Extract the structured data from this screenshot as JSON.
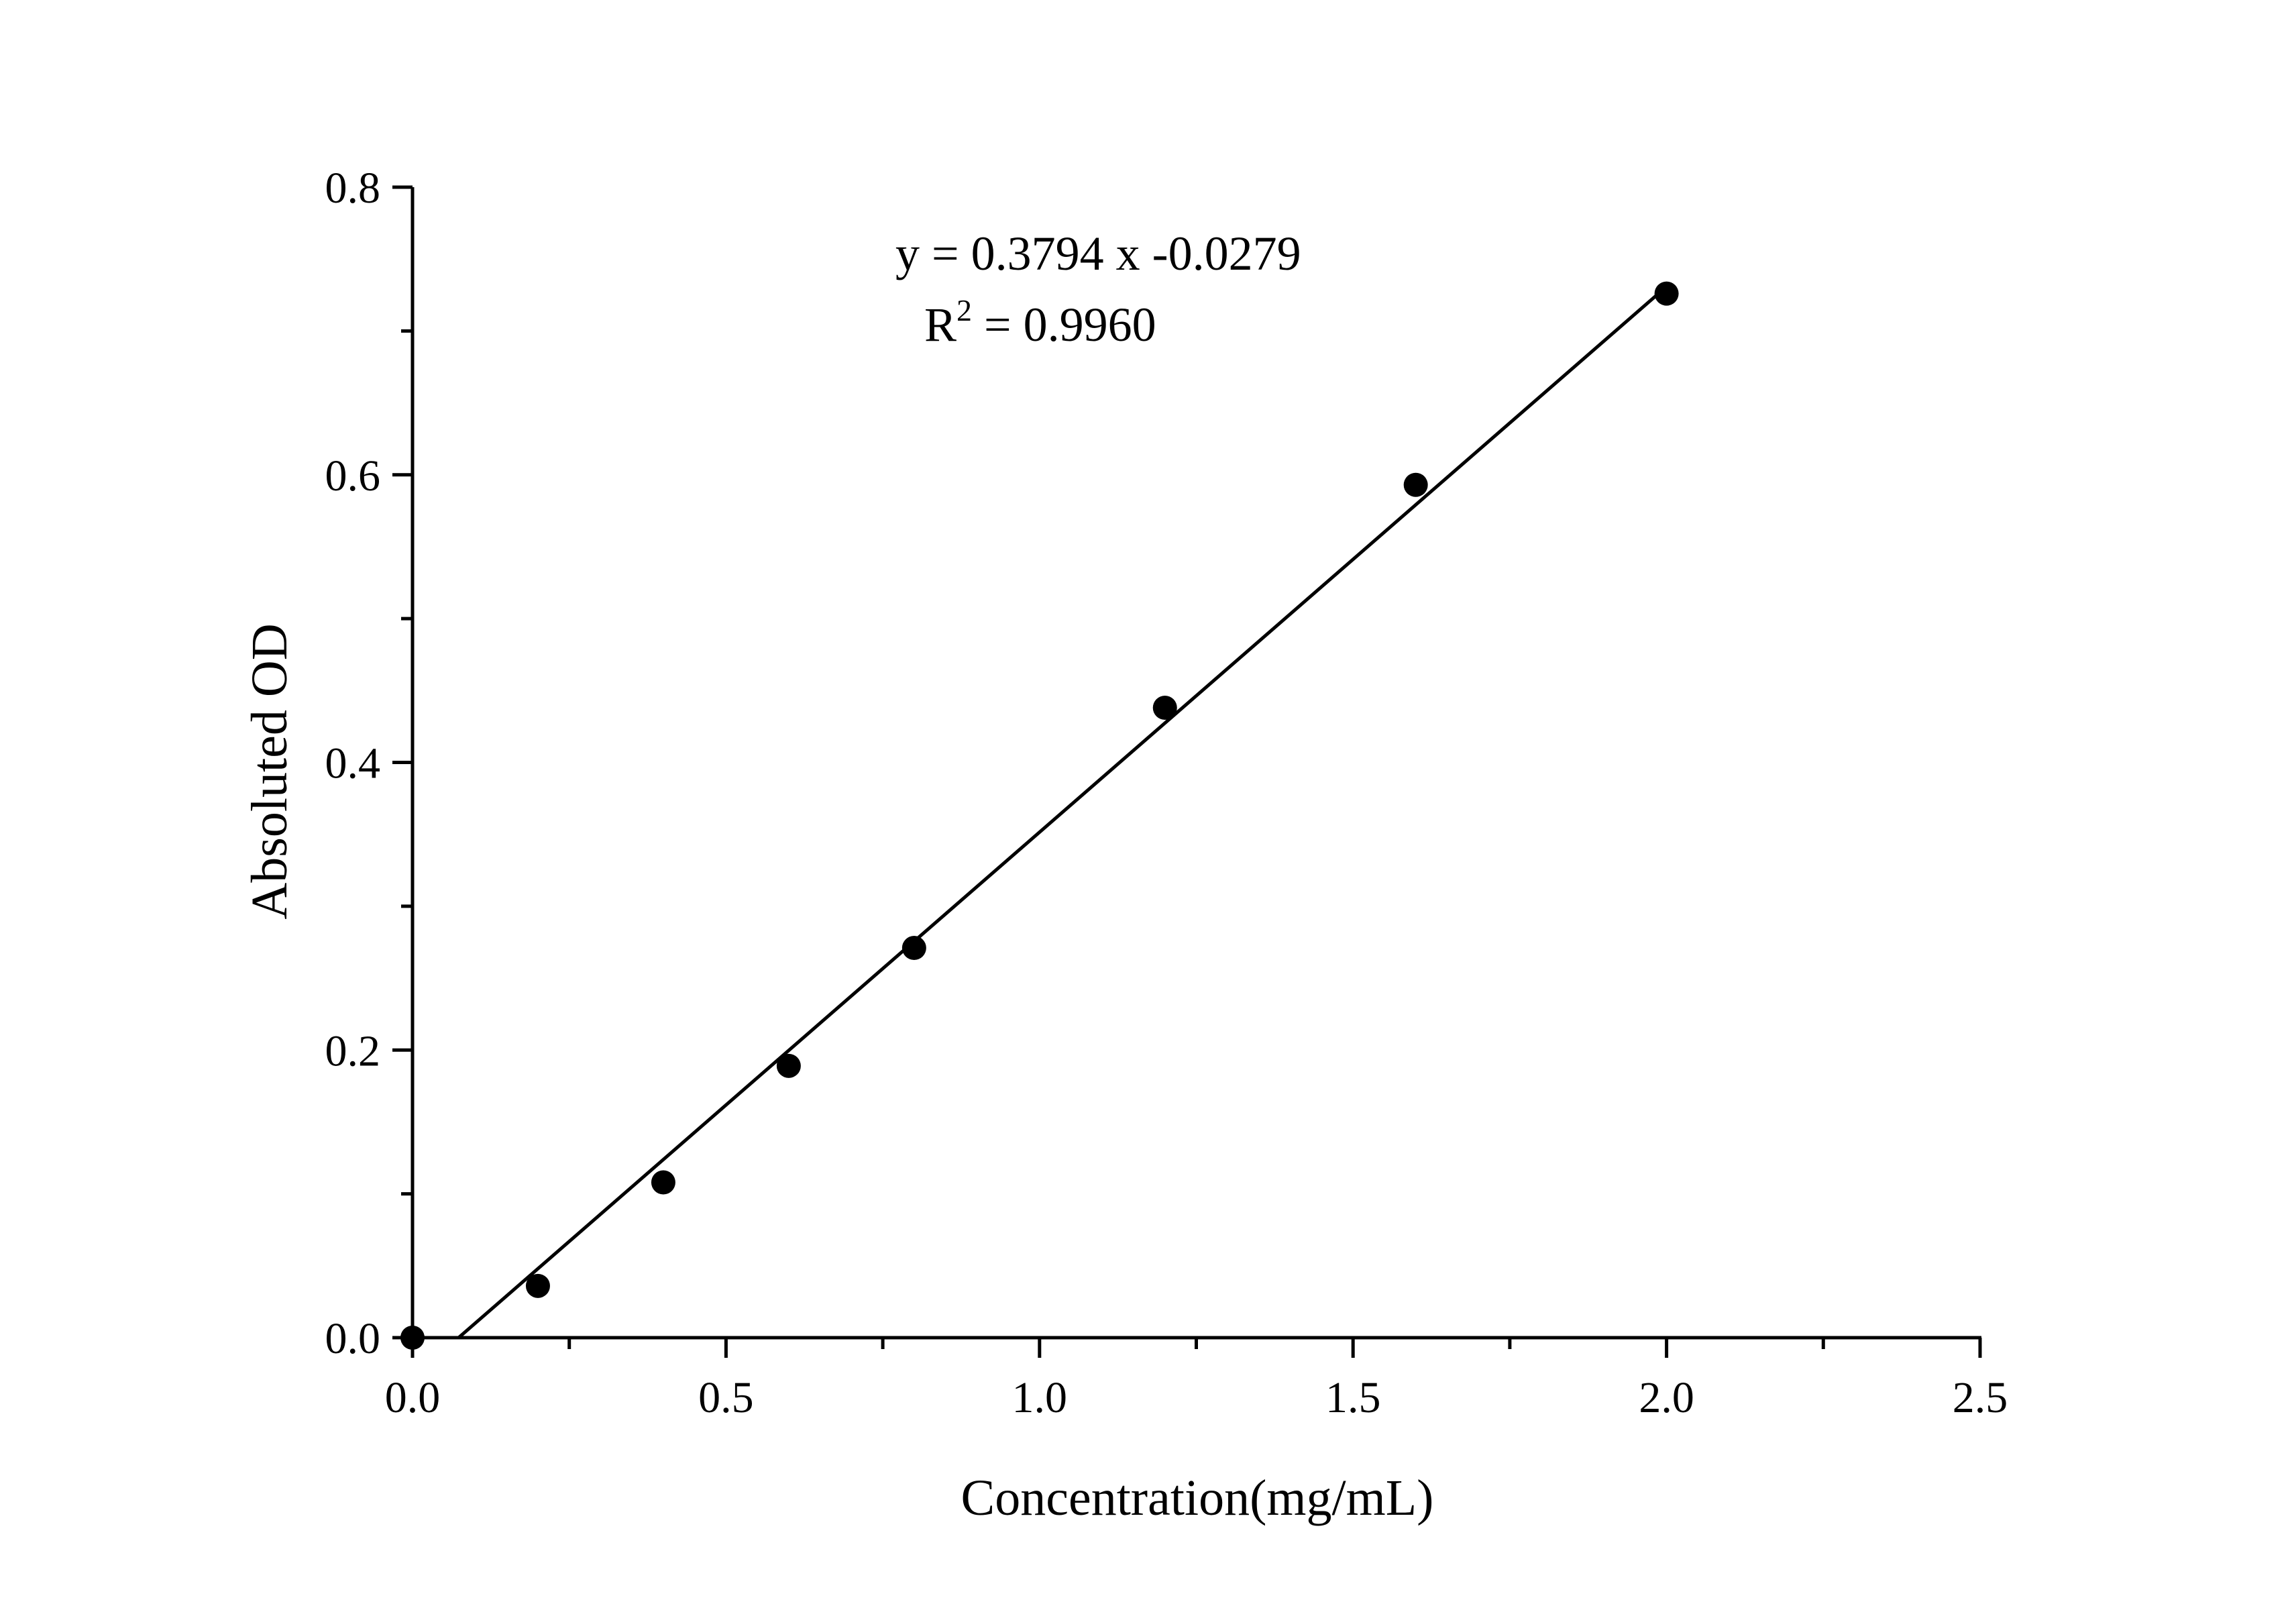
{
  "chart_data": {
    "type": "scatter",
    "xlabel": "Concentration(mg/mL)",
    "ylabel": "Absoluted OD",
    "xlim": [
      0,
      2.5
    ],
    "ylim": [
      0,
      0.8
    ],
    "x_major_ticks": [
      "0.0",
      "0.5",
      "1.0",
      "1.5",
      "2.0",
      "2.5"
    ],
    "y_major_ticks": [
      "0.0",
      "0.2",
      "0.4",
      "0.6",
      "0.8"
    ],
    "grid": false,
    "legend": "none",
    "series": [
      {
        "x": [
          0,
          0.2,
          0.4,
          0.6,
          0.8,
          1.2,
          1.6,
          2.0
        ],
        "y": [
          0.0,
          0.036,
          0.108,
          0.189,
          0.271,
          0.438,
          0.593,
          0.726
        ],
        "marker": "circle",
        "color": "#000000"
      }
    ],
    "fit_line": {
      "slope": 0.3794,
      "intercept": -0.0279,
      "x_range": [
        0.0735,
        2.0
      ],
      "color": "#000000"
    },
    "annotations": {
      "equation": "y = 0.3794 x -0.0279",
      "r_squared_label": "R",
      "r_squared_sup": "2",
      "r_squared_value": " = 0.9960"
    }
  }
}
